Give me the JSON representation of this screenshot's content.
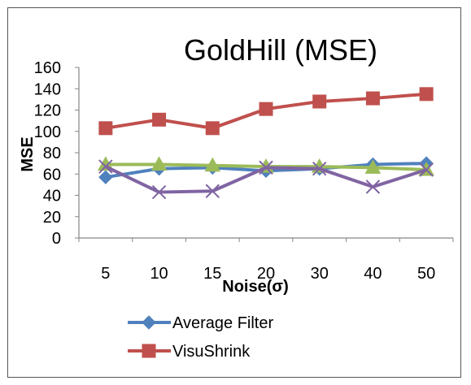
{
  "chart_data": {
    "type": "line",
    "title": "GoldHill (MSE)",
    "xlabel": "Noise(σ)",
    "ylabel": "MSE",
    "categories": [
      "5",
      "10",
      "15",
      "20",
      "30",
      "40",
      "50"
    ],
    "ylim": [
      0,
      160
    ],
    "yticks": [
      0,
      20,
      40,
      60,
      80,
      100,
      120,
      140,
      160
    ],
    "grid": false,
    "legend_position": "bottom",
    "series": [
      {
        "name": "Average Filter",
        "color": "#4F81BD",
        "marker": "diamond",
        "values": [
          57,
          65,
          66,
          63,
          65,
          69,
          70
        ]
      },
      {
        "name": "VisuShrink",
        "color": "#C0504D",
        "marker": "square",
        "values": [
          103,
          111,
          103,
          121,
          128,
          131,
          135
        ]
      },
      {
        "name": "",
        "color": "#9BBB59",
        "marker": "triangle",
        "values": [
          69,
          69,
          68,
          67,
          67,
          66,
          64
        ]
      },
      {
        "name": "",
        "color": "#8064A2",
        "marker": "x",
        "values": [
          67,
          43,
          44,
          66,
          65,
          48,
          64
        ]
      }
    ]
  }
}
